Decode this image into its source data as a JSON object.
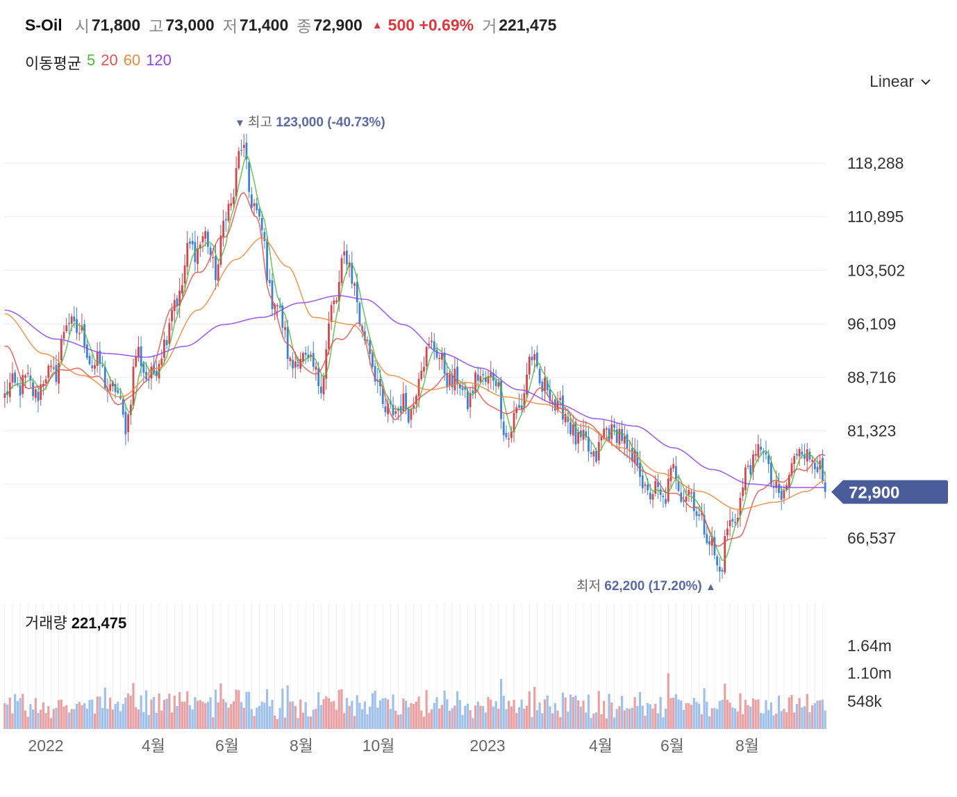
{
  "header": {
    "name": "S-Oil",
    "open_label": "시",
    "open": "71,800",
    "high_label": "고",
    "high": "73,000",
    "low_label": "저",
    "low": "71,400",
    "close_label": "종",
    "close": "72,900",
    "change": "500 +0.69%",
    "volume_label": "거",
    "volume": "221,475"
  },
  "ma": {
    "label": "이동평균",
    "items": [
      {
        "period": "5",
        "color": "#4cba3c"
      },
      {
        "period": "20",
        "color": "#e8524f"
      },
      {
        "period": "60",
        "color": "#f08a3a"
      },
      {
        "period": "120",
        "color": "#8e44f0"
      }
    ]
  },
  "scale_selector": {
    "value": "Linear",
    "icon": "chevron-down-icon"
  },
  "volume_panel": {
    "label": "거래량",
    "value": "221,475"
  },
  "chart_data": {
    "type": "candlestick",
    "y_ticks": [
      "118,288",
      "110,895",
      "103,502",
      "96,109",
      "88,716",
      "81,323",
      "66,537"
    ],
    "y_tick_values": [
      118288,
      110895,
      103502,
      96109,
      88716,
      81323,
      66537
    ],
    "x_ticks": [
      "2022",
      "4월",
      "6월",
      "8월",
      "10월",
      "2023",
      "4월",
      "6월",
      "8월"
    ],
    "ylim": [
      62200,
      123000
    ],
    "current_price": {
      "label": "72,900",
      "value": 72900,
      "color": "#4a5c9a"
    },
    "max_annotation": {
      "arrow": "▼",
      "label": "최고",
      "value": "123,000 (-40.73%)"
    },
    "min_annotation": {
      "label": "최저",
      "value": "62,200 (17.20%)",
      "arrow": "▲"
    },
    "volume_ticks": [
      "1.64m",
      "1.10m",
      "548k"
    ],
    "volume_tick_values": [
      1640000,
      1100000,
      548000
    ],
    "colors": {
      "up": "#d0464b",
      "down": "#3b82d6",
      "vol_up": "#e8a0a3",
      "vol_down": "#9fc0ea"
    },
    "price_anchors": [
      [
        0,
        86000
      ],
      [
        5,
        88000
      ],
      [
        12,
        87000
      ],
      [
        20,
        90000
      ],
      [
        25,
        97000
      ],
      [
        30,
        94000
      ],
      [
        36,
        90000
      ],
      [
        42,
        87000
      ],
      [
        47,
        83000
      ],
      [
        52,
        92000
      ],
      [
        57,
        88000
      ],
      [
        62,
        94000
      ],
      [
        67,
        100000
      ],
      [
        72,
        106000
      ],
      [
        77,
        108000
      ],
      [
        82,
        104000
      ],
      [
        87,
        112000
      ],
      [
        92,
        120000
      ],
      [
        96,
        114000
      ],
      [
        100,
        108000
      ],
      [
        104,
        100000
      ],
      [
        108,
        96000
      ],
      [
        112,
        90000
      ],
      [
        116,
        92000
      ],
      [
        122,
        88000
      ],
      [
        128,
        98000
      ],
      [
        132,
        106000
      ],
      [
        136,
        101000
      ],
      [
        140,
        94000
      ],
      [
        144,
        90000
      ],
      [
        148,
        83000
      ],
      [
        152,
        85000
      ],
      [
        157,
        84000
      ],
      [
        162,
        90000
      ],
      [
        166,
        94000
      ],
      [
        170,
        90000
      ],
      [
        175,
        88000
      ],
      [
        180,
        86000
      ],
      [
        186,
        89000
      ],
      [
        191,
        88000
      ],
      [
        196,
        80000
      ],
      [
        200,
        85000
      ],
      [
        205,
        91000
      ],
      [
        210,
        87000
      ],
      [
        215,
        85000
      ],
      [
        220,
        82000
      ],
      [
        225,
        79000
      ],
      [
        230,
        78000
      ],
      [
        235,
        82000
      ],
      [
        240,
        80000
      ],
      [
        245,
        77000
      ],
      [
        250,
        73000
      ],
      [
        255,
        72000
      ],
      [
        260,
        75000
      ],
      [
        265,
        73000
      ],
      [
        270,
        70000
      ],
      [
        275,
        65000
      ],
      [
        278,
        62500
      ],
      [
        282,
        68000
      ],
      [
        286,
        72000
      ],
      [
        290,
        77000
      ],
      [
        294,
        79000
      ],
      [
        298,
        75000
      ],
      [
        302,
        71000
      ],
      [
        306,
        77000
      ],
      [
        310,
        79000
      ],
      [
        314,
        78000
      ],
      [
        316,
        76000
      ],
      [
        319,
        72900
      ]
    ],
    "ma20_anchors": [
      [
        0,
        93000
      ],
      [
        10,
        87000
      ],
      [
        25,
        90000
      ],
      [
        35,
        89000
      ],
      [
        45,
        85000
      ],
      [
        55,
        88000
      ],
      [
        65,
        98000
      ],
      [
        75,
        103000
      ],
      [
        85,
        108000
      ],
      [
        93,
        114000
      ],
      [
        98,
        111000
      ],
      [
        103,
        100000
      ],
      [
        110,
        93000
      ],
      [
        120,
        89000
      ],
      [
        130,
        94000
      ],
      [
        138,
        96000
      ],
      [
        145,
        88000
      ],
      [
        152,
        83000
      ],
      [
        162,
        86000
      ],
      [
        172,
        89000
      ],
      [
        182,
        87000
      ],
      [
        192,
        84000
      ],
      [
        200,
        84000
      ],
      [
        208,
        87000
      ],
      [
        218,
        84000
      ],
      [
        228,
        82000
      ],
      [
        238,
        79000
      ],
      [
        248,
        76000
      ],
      [
        258,
        73000
      ],
      [
        268,
        71000
      ],
      [
        278,
        65500
      ],
      [
        286,
        67000
      ],
      [
        294,
        73500
      ],
      [
        302,
        74500
      ],
      [
        310,
        76000
      ],
      [
        319,
        78000
      ]
    ],
    "ma60_anchors": [
      [
        0,
        97500
      ],
      [
        15,
        92000
      ],
      [
        30,
        89000
      ],
      [
        45,
        86000
      ],
      [
        60,
        90000
      ],
      [
        75,
        98000
      ],
      [
        90,
        105000
      ],
      [
        100,
        108000
      ],
      [
        110,
        104000
      ],
      [
        120,
        97000
      ],
      [
        135,
        96000
      ],
      [
        150,
        89000
      ],
      [
        165,
        87000
      ],
      [
        180,
        88000
      ],
      [
        195,
        86000
      ],
      [
        210,
        85000
      ],
      [
        225,
        82000
      ],
      [
        240,
        79000
      ],
      [
        255,
        75500
      ],
      [
        270,
        73000
      ],
      [
        285,
        70500
      ],
      [
        300,
        71500
      ],
      [
        312,
        73000
      ],
      [
        319,
        74500
      ]
    ],
    "ma120_anchors": [
      [
        0,
        98000
      ],
      [
        20,
        94000
      ],
      [
        40,
        92000
      ],
      [
        55,
        91500
      ],
      [
        70,
        93000
      ],
      [
        85,
        96000
      ],
      [
        100,
        97000
      ],
      [
        115,
        99000
      ],
      [
        130,
        100000
      ],
      [
        140,
        99500
      ],
      [
        155,
        96000
      ],
      [
        170,
        92000
      ],
      [
        185,
        90000
      ],
      [
        200,
        87000
      ],
      [
        215,
        85000
      ],
      [
        230,
        83000
      ],
      [
        245,
        82000
      ],
      [
        260,
        79000
      ],
      [
        275,
        76000
      ],
      [
        290,
        74000
      ],
      [
        305,
        73500
      ],
      [
        319,
        73500
      ]
    ]
  }
}
